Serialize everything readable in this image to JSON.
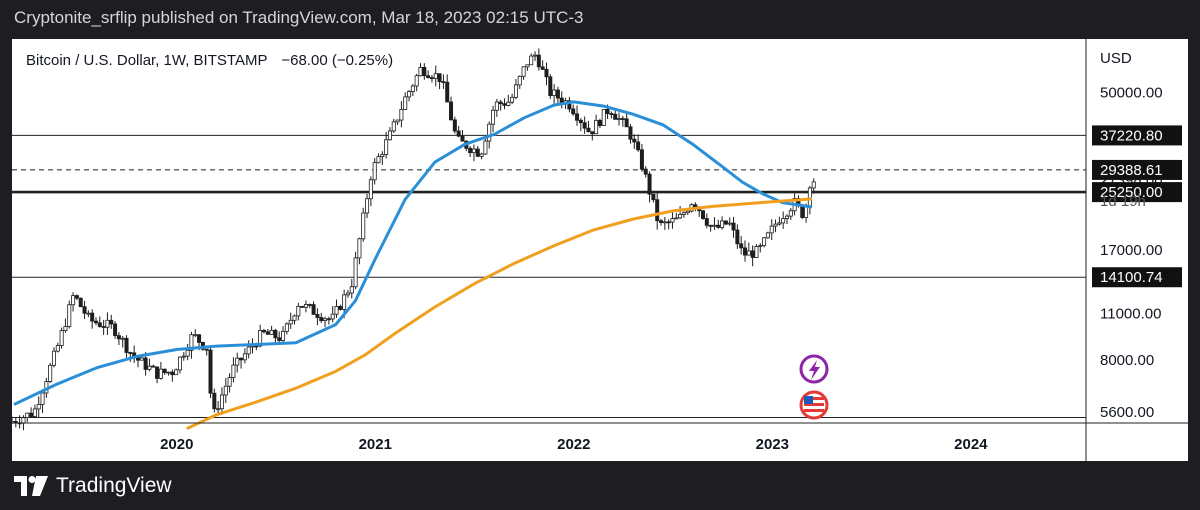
{
  "header": {
    "text": "Cryptonite_srflip published on TradingView.com, Mar 18, 2023 02:15 UTC-3"
  },
  "footer": {
    "brand": "TradingView"
  },
  "chart_data": {
    "type": "candlestick",
    "title": "Bitcoin / U.S. Dollar, 1W, BITSTAMP",
    "change_text": "−68.00 (−0.25%)",
    "currency": "USD",
    "yscale": "log",
    "ylim": [
      5200,
      72000
    ],
    "xlim": [
      2019.17,
      2024.58
    ],
    "x_ticks": [
      "2020",
      "2021",
      "2022",
      "2023",
      "2024"
    ],
    "y_ticks": [
      "50000.00",
      "27398.00",
      "17000.00",
      "11000.00",
      "8000.00",
      "5600.00"
    ],
    "price_tags": [
      {
        "label": "37220.80",
        "value": 37220.8
      },
      {
        "label": "29388.61",
        "value": 29388.61
      },
      {
        "label": "25250.00",
        "value": 25250
      },
      {
        "label": "14100.74",
        "value": 14100.74
      }
    ],
    "countdown": "1d 19h",
    "horizontal_lines": [
      {
        "value": 37220.8,
        "style": "solid"
      },
      {
        "value": 29388.61,
        "style": "dashed"
      },
      {
        "value": 25250,
        "style": "bold"
      },
      {
        "value": 14100.74,
        "style": "solid"
      },
      {
        "value": 5400,
        "style": "solid"
      }
    ],
    "series": [
      {
        "name": "",
        "color": "#2b8fd8",
        "points": [
          [
            2019.18,
            5900
          ],
          [
            2019.4,
            6800
          ],
          [
            2019.6,
            7600
          ],
          [
            2019.8,
            8200
          ],
          [
            2020.0,
            8600
          ],
          [
            2020.2,
            8800
          ],
          [
            2020.4,
            8900
          ],
          [
            2020.6,
            9000
          ],
          [
            2020.8,
            10200
          ],
          [
            2020.9,
            12000
          ],
          [
            2021.0,
            16000
          ],
          [
            2021.15,
            24000
          ],
          [
            2021.3,
            31000
          ],
          [
            2021.45,
            35000
          ],
          [
            2021.6,
            37500
          ],
          [
            2021.75,
            42000
          ],
          [
            2021.9,
            45800
          ],
          [
            2022.0,
            46800
          ],
          [
            2022.15,
            45500
          ],
          [
            2022.3,
            43000
          ],
          [
            2022.45,
            40000
          ],
          [
            2022.6,
            35000
          ],
          [
            2022.75,
            30000
          ],
          [
            2022.85,
            27000
          ],
          [
            2022.95,
            25000
          ],
          [
            2023.05,
            23500
          ],
          [
            2023.2,
            22800
          ]
        ]
      },
      {
        "name": "",
        "color": "#f0a01e",
        "points": [
          [
            2020.05,
            5000
          ],
          [
            2020.2,
            5500
          ],
          [
            2020.4,
            6000
          ],
          [
            2020.6,
            6600
          ],
          [
            2020.8,
            7400
          ],
          [
            2020.95,
            8300
          ],
          [
            2021.1,
            9600
          ],
          [
            2021.3,
            11500
          ],
          [
            2021.5,
            13500
          ],
          [
            2021.7,
            15500
          ],
          [
            2021.9,
            17500
          ],
          [
            2022.1,
            19500
          ],
          [
            2022.3,
            21000
          ],
          [
            2022.5,
            22200
          ],
          [
            2022.7,
            22900
          ],
          [
            2022.9,
            23400
          ],
          [
            2023.2,
            24100
          ]
        ]
      }
    ],
    "candles": {
      "color_up": "#1e1e1e",
      "color_down": "#1e1e1e",
      "anchors": [
        [
          2019.17,
          5200
        ],
        [
          2019.3,
          5600
        ],
        [
          2019.42,
          8800
        ],
        [
          2019.5,
          12500
        ],
        [
          2019.58,
          10500
        ],
        [
          2019.7,
          10000
        ],
        [
          2019.8,
          8200
        ],
        [
          2019.92,
          7300
        ],
        [
          2020.0,
          7400
        ],
        [
          2020.1,
          9500
        ],
        [
          2020.17,
          8700
        ],
        [
          2020.2,
          5400
        ],
        [
          2020.3,
          7500
        ],
        [
          2020.45,
          9600
        ],
        [
          2020.55,
          9300
        ],
        [
          2020.63,
          11800
        ],
        [
          2020.8,
          10500
        ],
        [
          2020.9,
          13500
        ],
        [
          2021.0,
          29000
        ],
        [
          2021.1,
          38000
        ],
        [
          2021.17,
          48000
        ],
        [
          2021.25,
          59000
        ],
        [
          2021.35,
          55000
        ],
        [
          2021.43,
          36000
        ],
        [
          2021.55,
          33000
        ],
        [
          2021.62,
          46000
        ],
        [
          2021.7,
          47000
        ],
        [
          2021.78,
          61000
        ],
        [
          2021.83,
          65000
        ],
        [
          2021.9,
          50000
        ],
        [
          2022.0,
          46000
        ],
        [
          2022.1,
          38000
        ],
        [
          2022.2,
          45000
        ],
        [
          2022.3,
          38000
        ],
        [
          2022.37,
          29500
        ],
        [
          2022.45,
          20000
        ],
        [
          2022.55,
          21000
        ],
        [
          2022.62,
          24000
        ],
        [
          2022.72,
          19500
        ],
        [
          2022.8,
          20500
        ],
        [
          2022.87,
          16500
        ],
        [
          2022.95,
          16800
        ],
        [
          2023.05,
          21000
        ],
        [
          2023.13,
          23500
        ],
        [
          2023.18,
          21500
        ],
        [
          2023.21,
          27400
        ]
      ]
    }
  }
}
